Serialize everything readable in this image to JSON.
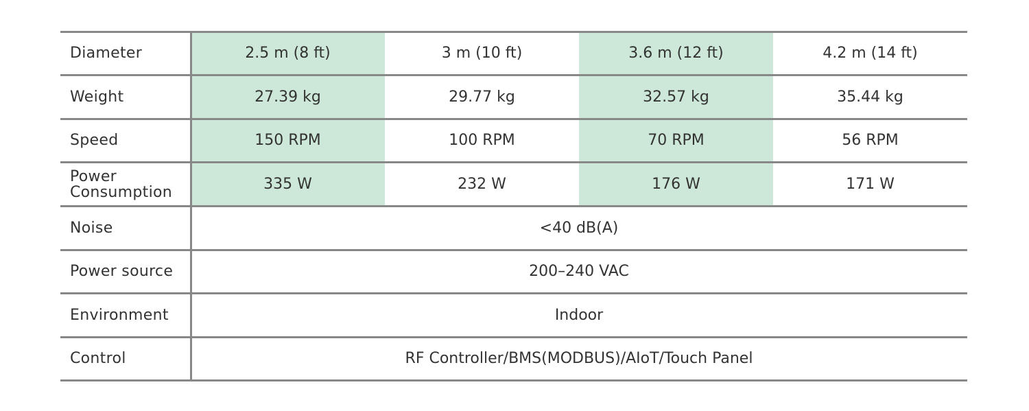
{
  "table": {
    "rows": [
      [
        "Diameter",
        "2.5 m (8 ft)",
        "3 m (10 ft)",
        "3.6 m (12 ft)",
        "4.2 m (14 ft)"
      ],
      [
        "Weight",
        "27.39 kg",
        "29.77 kg",
        "32.57 kg",
        "35.44 kg"
      ],
      [
        "Speed",
        "150 RPM",
        "100 RPM",
        "70 RPM",
        "56 RPM"
      ],
      [
        "Power Consumption",
        "335 W",
        "232 W",
        "176 W",
        "171 W"
      ],
      [
        "Noise",
        "<40 dB(A)"
      ],
      [
        "Power source",
        "200–240 VAC"
      ],
      [
        "Environment",
        "Indoor"
      ],
      [
        "Control",
        "RF Controller/BMS(MODBUS)/AIoT/Touch Panel"
      ]
    ]
  }
}
